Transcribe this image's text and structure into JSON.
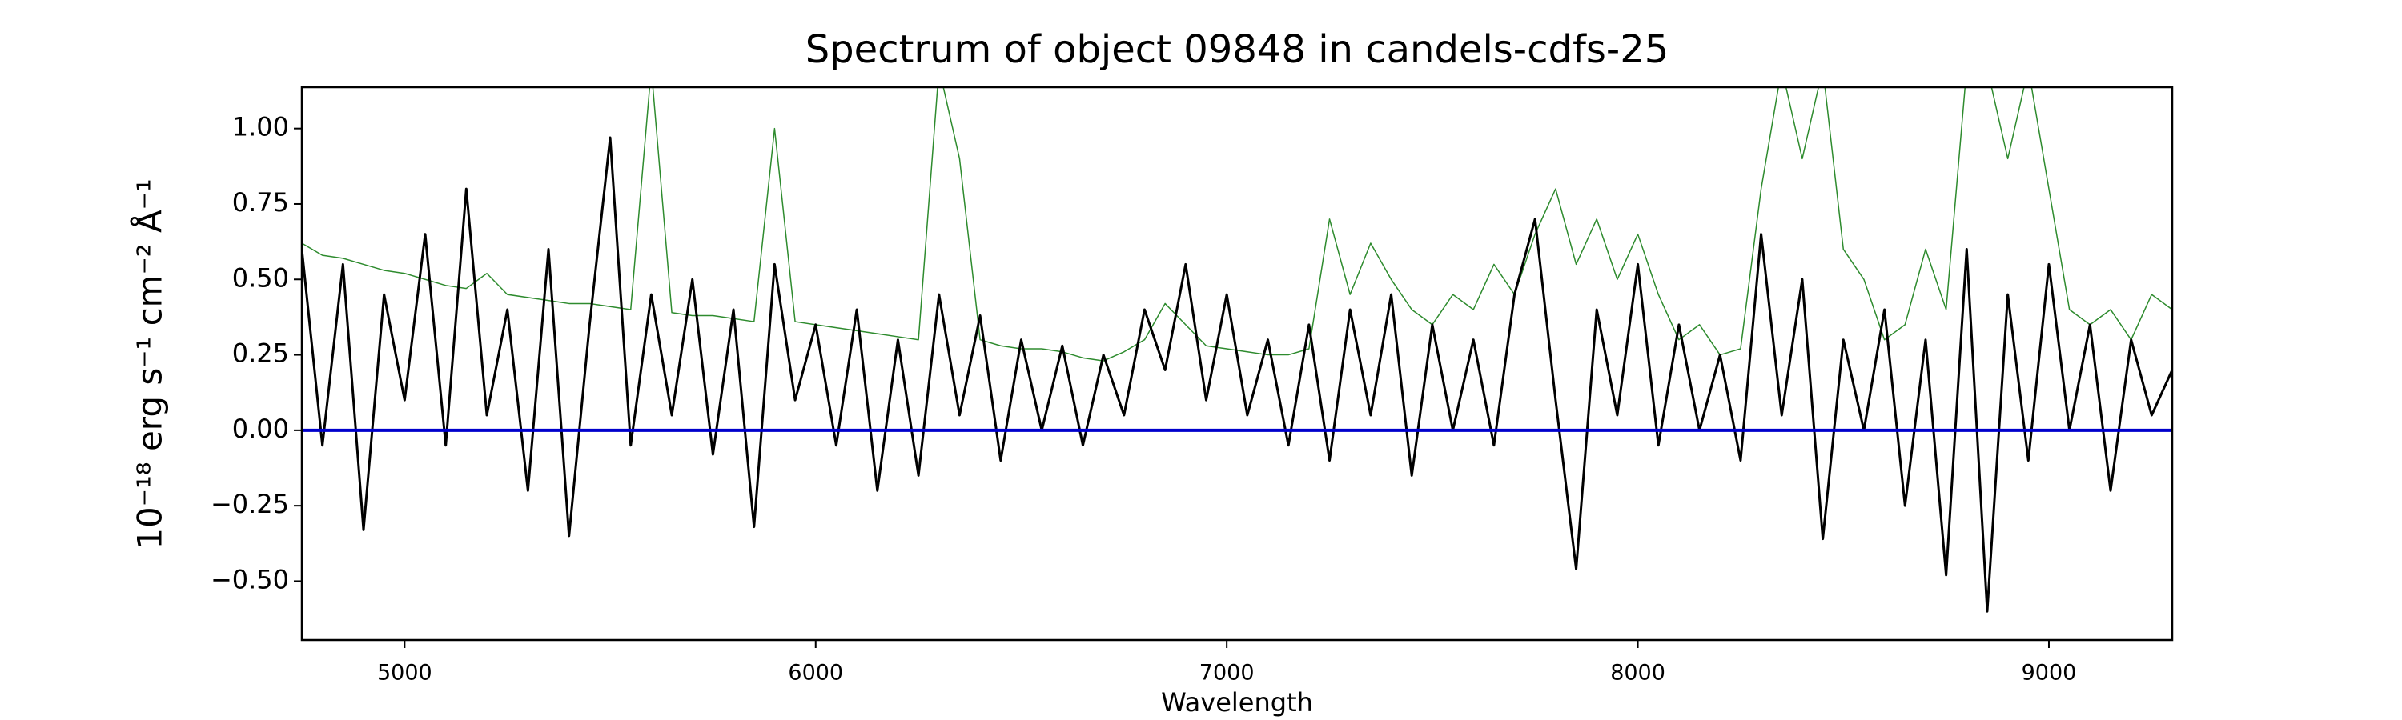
{
  "chart_data": {
    "type": "line",
    "title": "Spectrum of object 09848 in candels-cdfs-25",
    "xlabel": "Wavelength",
    "ylabel": "10⁻¹⁸ erg s⁻¹ cm⁻² Å⁻¹",
    "x": [
      4750,
      4800,
      4850,
      4900,
      4950,
      5000,
      5050,
      5100,
      5150,
      5200,
      5250,
      5300,
      5350,
      5400,
      5450,
      5500,
      5550,
      5600,
      5650,
      5700,
      5750,
      5800,
      5850,
      5900,
      5950,
      6000,
      6050,
      6100,
      6150,
      6200,
      6250,
      6300,
      6350,
      6400,
      6450,
      6500,
      6550,
      6600,
      6650,
      6700,
      6750,
      6800,
      6850,
      6900,
      6950,
      7000,
      7050,
      7100,
      7150,
      7200,
      7250,
      7300,
      7350,
      7400,
      7450,
      7500,
      7550,
      7600,
      7650,
      7700,
      7750,
      7800,
      7850,
      7900,
      7950,
      8000,
      8050,
      8100,
      8150,
      8200,
      8250,
      8300,
      8350,
      8400,
      8450,
      8500,
      8550,
      8600,
      8650,
      8700,
      8750,
      8800,
      8850,
      8900,
      8950,
      9000,
      9050,
      9100,
      9150,
      9200,
      9250,
      9300
    ],
    "series": [
      {
        "color": "#2e8b2e",
        "width": 1.5,
        "values": [
          0.62,
          0.58,
          0.57,
          0.55,
          0.53,
          0.52,
          0.5,
          0.48,
          0.47,
          0.52,
          0.45,
          0.44,
          0.43,
          0.42,
          0.42,
          0.41,
          0.4,
          1.2,
          0.39,
          0.38,
          0.38,
          0.37,
          0.36,
          1.0,
          0.36,
          0.35,
          0.34,
          0.33,
          0.32,
          0.31,
          0.3,
          1.2,
          0.9,
          0.3,
          0.28,
          0.27,
          0.27,
          0.26,
          0.24,
          0.23,
          0.26,
          0.3,
          0.42,
          0.35,
          0.28,
          0.27,
          0.26,
          0.25,
          0.25,
          0.27,
          0.7,
          0.45,
          0.62,
          0.5,
          0.4,
          0.35,
          0.45,
          0.4,
          0.55,
          0.45,
          0.65,
          0.8,
          0.55,
          0.7,
          0.5,
          0.65,
          0.45,
          0.3,
          0.35,
          0.25,
          0.27,
          0.8,
          1.2,
          0.9,
          1.2,
          0.6,
          0.5,
          0.3,
          0.35,
          0.6,
          0.4,
          1.2,
          1.2,
          0.9,
          1.2,
          0.8,
          0.4,
          0.35,
          0.4,
          0.3,
          0.45,
          0.4
        ]
      },
      {
        "color": "#000000",
        "width": 3,
        "values": [
          0.6,
          -0.05,
          0.55,
          -0.33,
          0.45,
          0.1,
          0.65,
          -0.05,
          0.8,
          0.05,
          0.4,
          -0.2,
          0.6,
          -0.35,
          0.35,
          0.97,
          -0.05,
          0.45,
          0.05,
          0.5,
          -0.08,
          0.4,
          -0.32,
          0.55,
          0.1,
          0.35,
          -0.05,
          0.4,
          -0.2,
          0.3,
          -0.15,
          0.45,
          0.05,
          0.38,
          -0.1,
          0.3,
          0.0,
          0.28,
          -0.05,
          0.25,
          0.05,
          0.4,
          0.2,
          0.55,
          0.1,
          0.45,
          0.05,
          0.3,
          -0.05,
          0.35,
          -0.1,
          0.4,
          0.05,
          0.45,
          -0.15,
          0.35,
          0.0,
          0.3,
          -0.05,
          0.45,
          0.7,
          0.1,
          -0.46,
          0.4,
          0.05,
          0.55,
          -0.05,
          0.35,
          0.0,
          0.25,
          -0.1,
          0.65,
          0.05,
          0.5,
          -0.36,
          0.3,
          0.0,
          0.4,
          -0.25,
          0.3,
          -0.48,
          0.6,
          -0.6,
          0.45,
          -0.1,
          0.55,
          0.0,
          0.35,
          -0.2,
          0.3,
          0.05,
          0.2
        ]
      }
    ],
    "hline": {
      "y": 0,
      "color": "#0000cc"
    },
    "xlim": [
      4750,
      9300
    ],
    "ylim": [
      -0.695,
      1.137
    ],
    "xticks": [
      5000,
      6000,
      7000,
      8000,
      9000
    ],
    "yticks": [
      {
        "value": -0.5,
        "label": "−0.50"
      },
      {
        "value": -0.25,
        "label": "−0.25"
      },
      {
        "value": 0,
        "label": "0.00"
      },
      {
        "value": 0.25,
        "label": "0.25"
      },
      {
        "value": 0.5,
        "label": "0.50"
      },
      {
        "value": 0.75,
        "label": "0.75"
      },
      {
        "value": 1,
        "label": "1.00"
      }
    ],
    "grid": false
  }
}
